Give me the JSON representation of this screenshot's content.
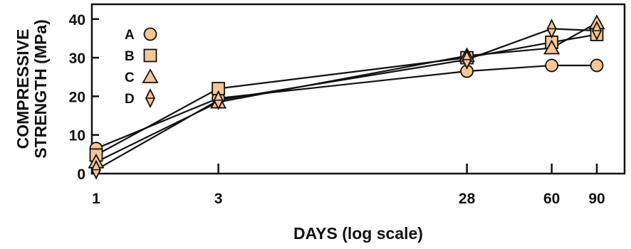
{
  "chart_data": {
    "type": "line",
    "xlabel": "DAYS (log scale)",
    "ylabel_lines": [
      "COMPRESSIVE",
      "STRENGTH (MPa)"
    ],
    "x_scale": "log",
    "x_ticks": [
      1,
      3,
      28,
      60,
      90
    ],
    "x_tick_labels": [
      "1",
      "3",
      "28",
      "60",
      "90"
    ],
    "y_ticks": [
      0,
      10,
      20,
      30,
      40
    ],
    "y_tick_labels": [
      "0",
      "10",
      "20",
      "30",
      "40"
    ],
    "ylim": [
      0,
      44
    ],
    "grid": false,
    "legend_position": "top-left",
    "marker_fill": "#f4c795",
    "series": [
      {
        "name": "A",
        "marker": "circle",
        "x": [
          1,
          3,
          28,
          60,
          90
        ],
        "y": [
          6.5,
          19.5,
          26.5,
          28,
          28
        ]
      },
      {
        "name": "B",
        "marker": "square",
        "x": [
          1,
          3,
          28,
          60,
          90
        ],
        "y": [
          4.8,
          22,
          30,
          34,
          36
        ]
      },
      {
        "name": "C",
        "marker": "triangle",
        "x": [
          1,
          3,
          28,
          60,
          90
        ],
        "y": [
          3,
          18.5,
          30.5,
          32.5,
          39
        ]
      },
      {
        "name": "D",
        "marker": "diamond",
        "x": [
          1,
          3,
          28,
          60,
          90
        ],
        "y": [
          1,
          19,
          29.5,
          37.5,
          37
        ]
      }
    ]
  }
}
